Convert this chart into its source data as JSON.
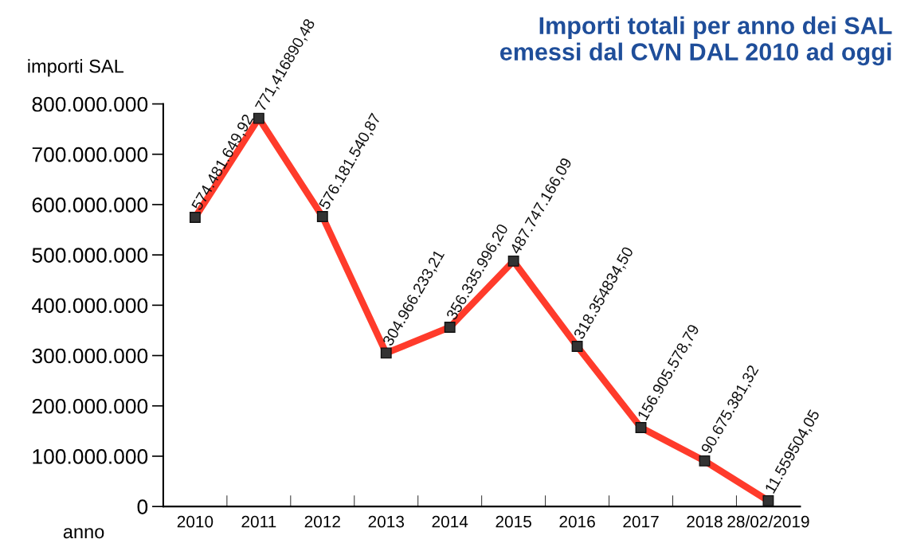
{
  "chart_data": {
    "type": "line",
    "title": "Importi totali per anno dei SAL\nemessi dal CVN DAL 2010 ad oggi",
    "xlabel": "anno",
    "ylabel": "importi SAL",
    "categories": [
      "2010",
      "2011",
      "2012",
      "2013",
      "2014",
      "2015",
      "2016",
      "2017",
      "2018",
      "28/02/2019"
    ],
    "series": [
      {
        "color": "#ff3b2b",
        "values": [
          574481649.92,
          771416890.48,
          576181540.87,
          304966233.21,
          356335996.2,
          487747166.09,
          318354834.5,
          156905578.79,
          90675381.32,
          11559504.05
        ],
        "value_labels": [
          "574.481.649,92",
          "771,416890,48",
          "576.181.540,87",
          "304.966.233,21",
          "356.335.996,20",
          "487.747.166,09",
          "318.354834,50",
          "156.905.578,79",
          "90.675.381,32",
          "11.559504,05"
        ]
      }
    ],
    "ylim": [
      0,
      800000000
    ],
    "yticks": [
      {
        "value": 0,
        "label": "0"
      },
      {
        "value": 100000000,
        "label": "100.000.000"
      },
      {
        "value": 200000000,
        "label": "200.000.000"
      },
      {
        "value": 300000000,
        "label": "300.000.000"
      },
      {
        "value": 400000000,
        "label": "400.000.000"
      },
      {
        "value": 500000000,
        "label": "500.000.000"
      },
      {
        "value": 600000000,
        "label": "600.000.000"
      },
      {
        "value": 700000000,
        "label": "700.000.000"
      },
      {
        "value": 800000000,
        "label": "800.000.000"
      }
    ],
    "marker": "square",
    "line_style": "solid",
    "grid": false,
    "legend": false
  }
}
